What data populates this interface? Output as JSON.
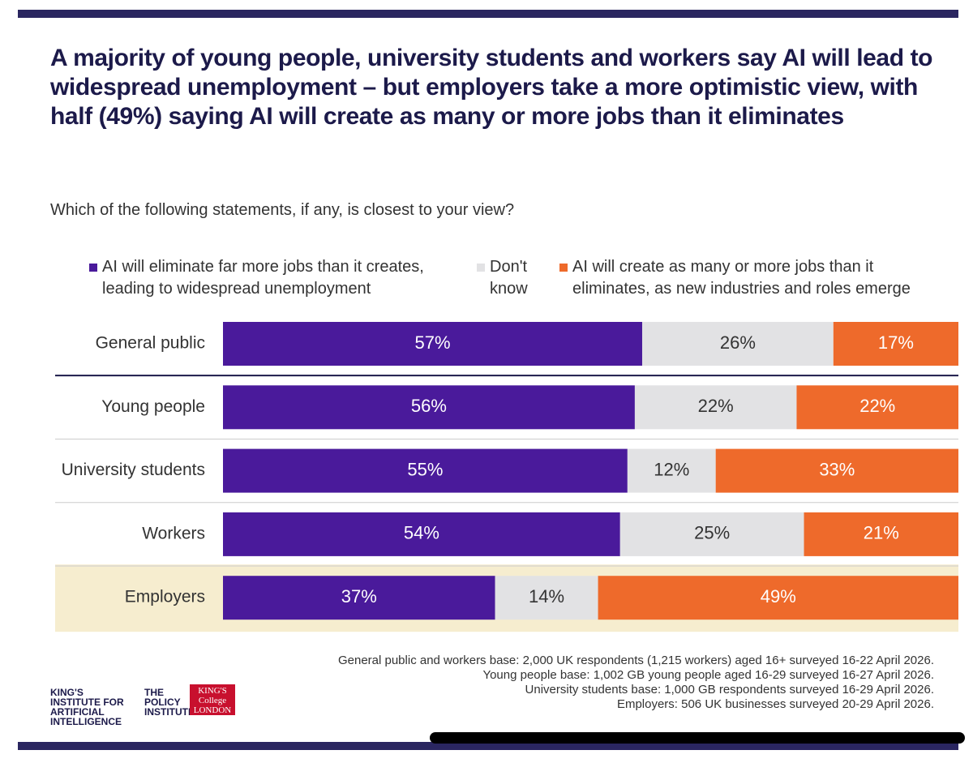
{
  "chart_data": {
    "type": "bar",
    "orientation": "horizontal",
    "stacked": true,
    "title": "A majority of young people, university students and workers say AI will lead to widespread unemployment – but employers take a more optimistic view, with half (49%) saying AI will create as many or more jobs than it eliminates",
    "subtitle": "Which of the following statements, if any, is closest to your view?",
    "categories": [
      "General public",
      "Young people",
      "University students",
      "Workers",
      "Employers"
    ],
    "highlight": 4,
    "xlim": [
      0,
      100
    ],
    "series": [
      {
        "name": "AI will eliminate far more jobs than it creates, leading to widespread unemployment",
        "color": "#4a1a9b",
        "values": [
          57,
          56,
          55,
          54,
          37
        ],
        "value_labels": [
          "57%",
          "56%",
          "55%",
          "54%",
          "37%"
        ]
      },
      {
        "name": "Don't know",
        "color": "#e2e2e4",
        "values": [
          26,
          22,
          12,
          25,
          14
        ],
        "value_labels": [
          "26%",
          "22%",
          "12%",
          "25%",
          "14%"
        ]
      },
      {
        "name": "AI will create as many or more jobs than it eliminates, as new industries and roles emerge",
        "color": "#ee6a2b",
        "values": [
          17,
          22,
          33,
          21,
          49
        ],
        "value_labels": [
          "17%",
          "22%",
          "33%",
          "21%",
          "49%"
        ]
      }
    ]
  },
  "footnotes": [
    "General public and workers base: 2,000 UK respondents (1,215 workers) aged 16+ surveyed 16-22 April 2026.",
    "Young people base: 1,002 GB young people aged 16-29 surveyed 16-27 April 2026.",
    "University students base: 1,000 GB respondents surveyed 16-29 April 2026.",
    "Employers: 506 UK businesses surveyed 20-29 April 2026."
  ],
  "logos": [
    "KING'S INSTITUTE FOR ARTIFICIAL INTELLIGENCE",
    "THE POLICY INSTITUTE",
    "KING'S College LONDON"
  ]
}
